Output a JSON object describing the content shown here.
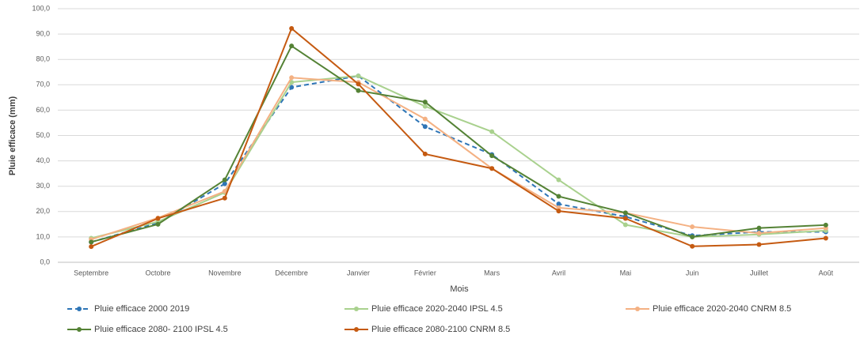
{
  "chart_data": {
    "type": "line",
    "y_label": "Pluie efficace (mm)",
    "x_label": "Mois",
    "categories": [
      "Septembre",
      "Octobre",
      "Novembre",
      "Décembre",
      "Janvier",
      "Février",
      "Mars",
      "Avril",
      "Mai",
      "Juin",
      "Juillet",
      "Août"
    ],
    "ylim": [
      0,
      100
    ],
    "yticks": [
      {
        "value": 0,
        "label": "0,0"
      },
      {
        "value": 10,
        "label": "10,0"
      },
      {
        "value": 20,
        "label": "20,0"
      },
      {
        "value": 30,
        "label": "30,0"
      },
      {
        "value": 40,
        "label": "40,0"
      },
      {
        "value": 50,
        "label": "50,0"
      },
      {
        "value": 60,
        "label": "60,0"
      },
      {
        "value": 70,
        "label": "70,0"
      },
      {
        "value": 80,
        "label": "80,0"
      },
      {
        "value": 90,
        "label": "90,0"
      },
      {
        "value": 100,
        "label": "100,0"
      }
    ],
    "grid": true,
    "series": [
      {
        "name": "Pluie efficace 2000 2019",
        "color": "#2e75b6",
        "dashed": true,
        "values": [
          8,
          15.5,
          31,
          69,
          73.5,
          53.5,
          42.5,
          23,
          18,
          10.5,
          12,
          12
        ]
      },
      {
        "name": "Pluie efficace 2020-2040 IPSL 4.5",
        "color": "#a9d18e",
        "values": [
          9.5,
          16,
          27.5,
          71,
          73.5,
          61.5,
          51.5,
          32.5,
          14.8,
          10,
          11,
          12.5
        ]
      },
      {
        "name": "Pluie efficace 2020-2040 CNRM 8.5",
        "color": "#f4b183",
        "values": [
          9,
          17.5,
          28,
          72.8,
          71,
          56.5,
          37,
          21.5,
          19.5,
          14,
          11.5,
          13.5
        ]
      },
      {
        "name": "Pluie efficace 2080- 2100 IPSL 4.5",
        "color": "#548235",
        "values": [
          8,
          15,
          32.5,
          85.3,
          67.7,
          63.2,
          42,
          26,
          19.5,
          10,
          13.5,
          14.7
        ]
      },
      {
        "name": "Pluie efficace 2080-2100 CNRM 8.5",
        "color": "#c55a11",
        "values": [
          6.2,
          17.3,
          25.3,
          92.2,
          70.3,
          42.7,
          37,
          20.2,
          17.3,
          6.3,
          7,
          9.5
        ]
      }
    ]
  }
}
